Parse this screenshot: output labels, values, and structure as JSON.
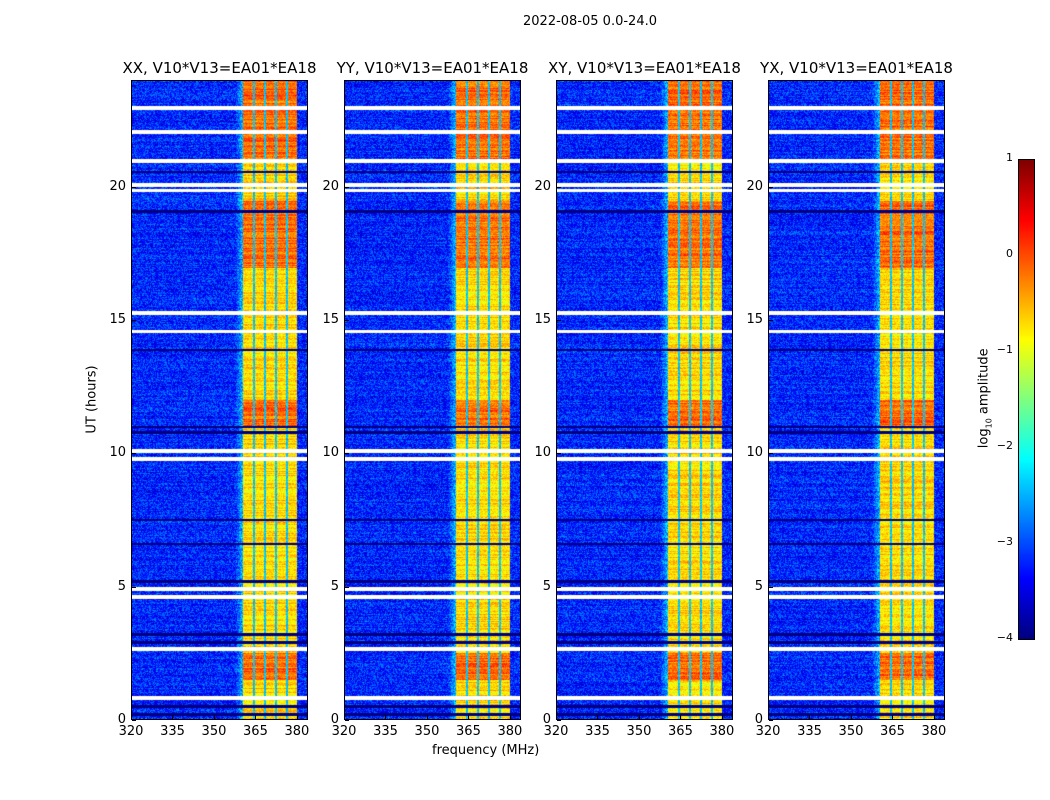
{
  "suptitle": "2022-08-05 0.0-24.0",
  "chart_data": {
    "type": "heatmap",
    "title": "2022-08-05 0.0-24.0",
    "xlabel": "frequency (MHz)",
    "ylabel": "UT (hours)",
    "xlim": [
      320,
      384
    ],
    "ylim": [
      0,
      24
    ],
    "xticks": [
      "320",
      "335",
      "350",
      "365",
      "380"
    ],
    "yticks": [
      "0",
      "5",
      "10",
      "15",
      "20"
    ],
    "panels": [
      {
        "title": "XX, V10*V13=EA01*EA18"
      },
      {
        "title": "YY, V10*V13=EA01*EA18"
      },
      {
        "title": "XY, V10*V13=EA01*EA18"
      },
      {
        "title": "YX, V10*V13=EA01*EA18"
      }
    ],
    "colorbar": {
      "label": "log10 amplitude",
      "label_main": "log",
      "label_sub": "10",
      "label_rest": " amplitude",
      "range": [
        -4,
        1
      ],
      "ticks": [
        "1",
        "0",
        "−1",
        "−2",
        "−3",
        "−4"
      ],
      "colormap": "jet"
    },
    "features": {
      "background_level": -3.2,
      "band_mhz": [
        360.5,
        380
      ],
      "band_level": -0.7,
      "band_gap_channels_mhz": [
        364.5,
        368.5,
        372.5,
        376.5
      ],
      "hot_periods_hours": [
        [
          1.5,
          2.5
        ],
        [
          11.0,
          12.0
        ],
        [
          17.0,
          19.5
        ],
        [
          21.0,
          24.0
        ]
      ],
      "flagged_rows_hours": [
        0.8,
        2.65,
        4.6,
        4.9,
        9.8,
        10.1,
        14.6,
        15.3,
        19.9,
        20.1,
        21.0,
        22.1,
        23.0
      ],
      "dark_rows_hours": [
        0.2,
        0.5,
        2.9,
        3.2,
        5.2,
        6.6,
        7.5,
        10.8,
        11.0,
        13.9,
        19.1,
        20.6
      ]
    }
  }
}
